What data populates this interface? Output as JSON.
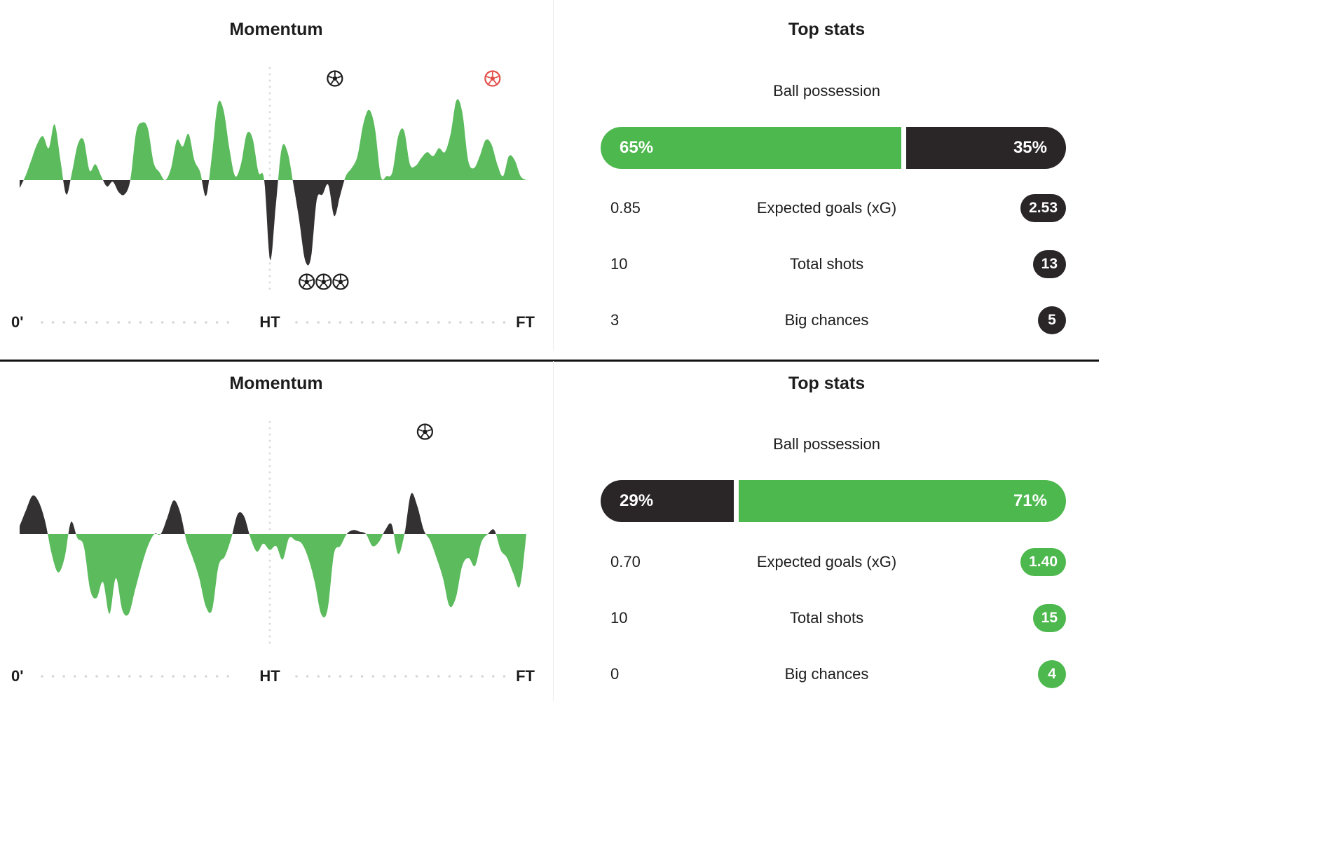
{
  "colors": {
    "green": "#4db84e",
    "dark": "#2a2627",
    "chart_green": "#5bbb5d",
    "chart_dark": "#343132",
    "red_ball": "#e3504c"
  },
  "panels": [
    {
      "momentum": {
        "title": "Momentum",
        "axis": {
          "start": "0'",
          "half": "HT",
          "end": "FT"
        },
        "chart_data": {
          "type": "area",
          "x_range": [
            0,
            90
          ],
          "y_range": [
            -100,
            100
          ],
          "series": [
            {
              "values": [
                -10,
                5,
                25,
                45,
                55,
                40,
                70,
                25,
                -18,
                10,
                45,
                50,
                12,
                20,
                5,
                -8,
                -2,
                -15,
                -18,
                0,
                60,
                72,
                65,
                22,
                10,
                0,
                15,
                50,
                42,
                58,
                25,
                10,
                -20,
                30,
                95,
                88,
                40,
                5,
                20,
                58,
                52,
                10,
                0,
                -100,
                -30,
                40,
                35,
                -5,
                -50,
                -100,
                -98,
                -25,
                -18,
                -6,
                -45,
                -20,
                5,
                15,
                30,
                70,
                88,
                65,
                5,
                5,
                10,
                55,
                62,
                20,
                18,
                28,
                35,
                30,
                40,
                35,
                58,
                100,
                85,
                25,
                15,
                30,
                50,
                45,
                20,
                5,
                30,
                25,
                5,
                0
              ]
            }
          ]
        },
        "goals_home": [
          {
            "minute": 56,
            "own_goal": false
          },
          {
            "minute": 84,
            "own_goal": true
          }
        ],
        "goals_away": [
          {
            "minute": 51
          },
          {
            "minute": 54
          },
          {
            "minute": 57
          }
        ]
      },
      "stats": {
        "title": "Top stats",
        "possession_label": "Ball possession",
        "possession": {
          "home_value": 0.65,
          "home_label": "65%",
          "away_label": "35%"
        },
        "rows": [
          {
            "home": "0.85",
            "label": "Expected goals (xG)",
            "away": "2.53"
          },
          {
            "home": "10",
            "label": "Total shots",
            "away": "13"
          },
          {
            "home": "3",
            "label": "Big chances",
            "away": "5"
          }
        ]
      }
    },
    {
      "momentum": {
        "title": "Momentum",
        "axis": {
          "start": "0'",
          "half": "HT",
          "end": "FT"
        },
        "chart_data": {
          "type": "area",
          "x_range": [
            0,
            90
          ],
          "y_range": [
            -100,
            100
          ],
          "series": [
            {
              "values": [
                10,
                30,
                48,
                40,
                15,
                -25,
                -48,
                -30,
                15,
                -5,
                -15,
                -70,
                -80,
                -60,
                -100,
                -55,
                -95,
                -100,
                -70,
                -40,
                -15,
                0,
                0,
                20,
                42,
                28,
                -8,
                -30,
                -55,
                -90,
                -95,
                -40,
                -28,
                -5,
                25,
                22,
                -5,
                -22,
                -12,
                -20,
                -15,
                -32,
                -5,
                -8,
                -12,
                -30,
                -60,
                -100,
                -95,
                -25,
                -15,
                0,
                5,
                3,
                0,
                -15,
                -10,
                5,
                12,
                -25,
                0,
                50,
                35,
                5,
                -8,
                -30,
                -55,
                -90,
                -80,
                -40,
                -30,
                -40,
                -10,
                0,
                5,
                -20,
                -30,
                -50,
                -65,
                0
              ]
            }
          ]
        },
        "goals_home": [
          {
            "minute": 72,
            "own_goal": false
          }
        ],
        "goals_away": []
      },
      "stats": {
        "title": "Top stats",
        "possession_label": "Ball possession",
        "possession": {
          "home_value": 0.29,
          "home_label": "29%",
          "away_label": "71%"
        },
        "rows": [
          {
            "home": "0.70",
            "label": "Expected goals (xG)",
            "away": "1.40"
          },
          {
            "home": "10",
            "label": "Total shots",
            "away": "15"
          },
          {
            "home": "0",
            "label": "Big chances",
            "away": "4"
          }
        ]
      }
    }
  ]
}
